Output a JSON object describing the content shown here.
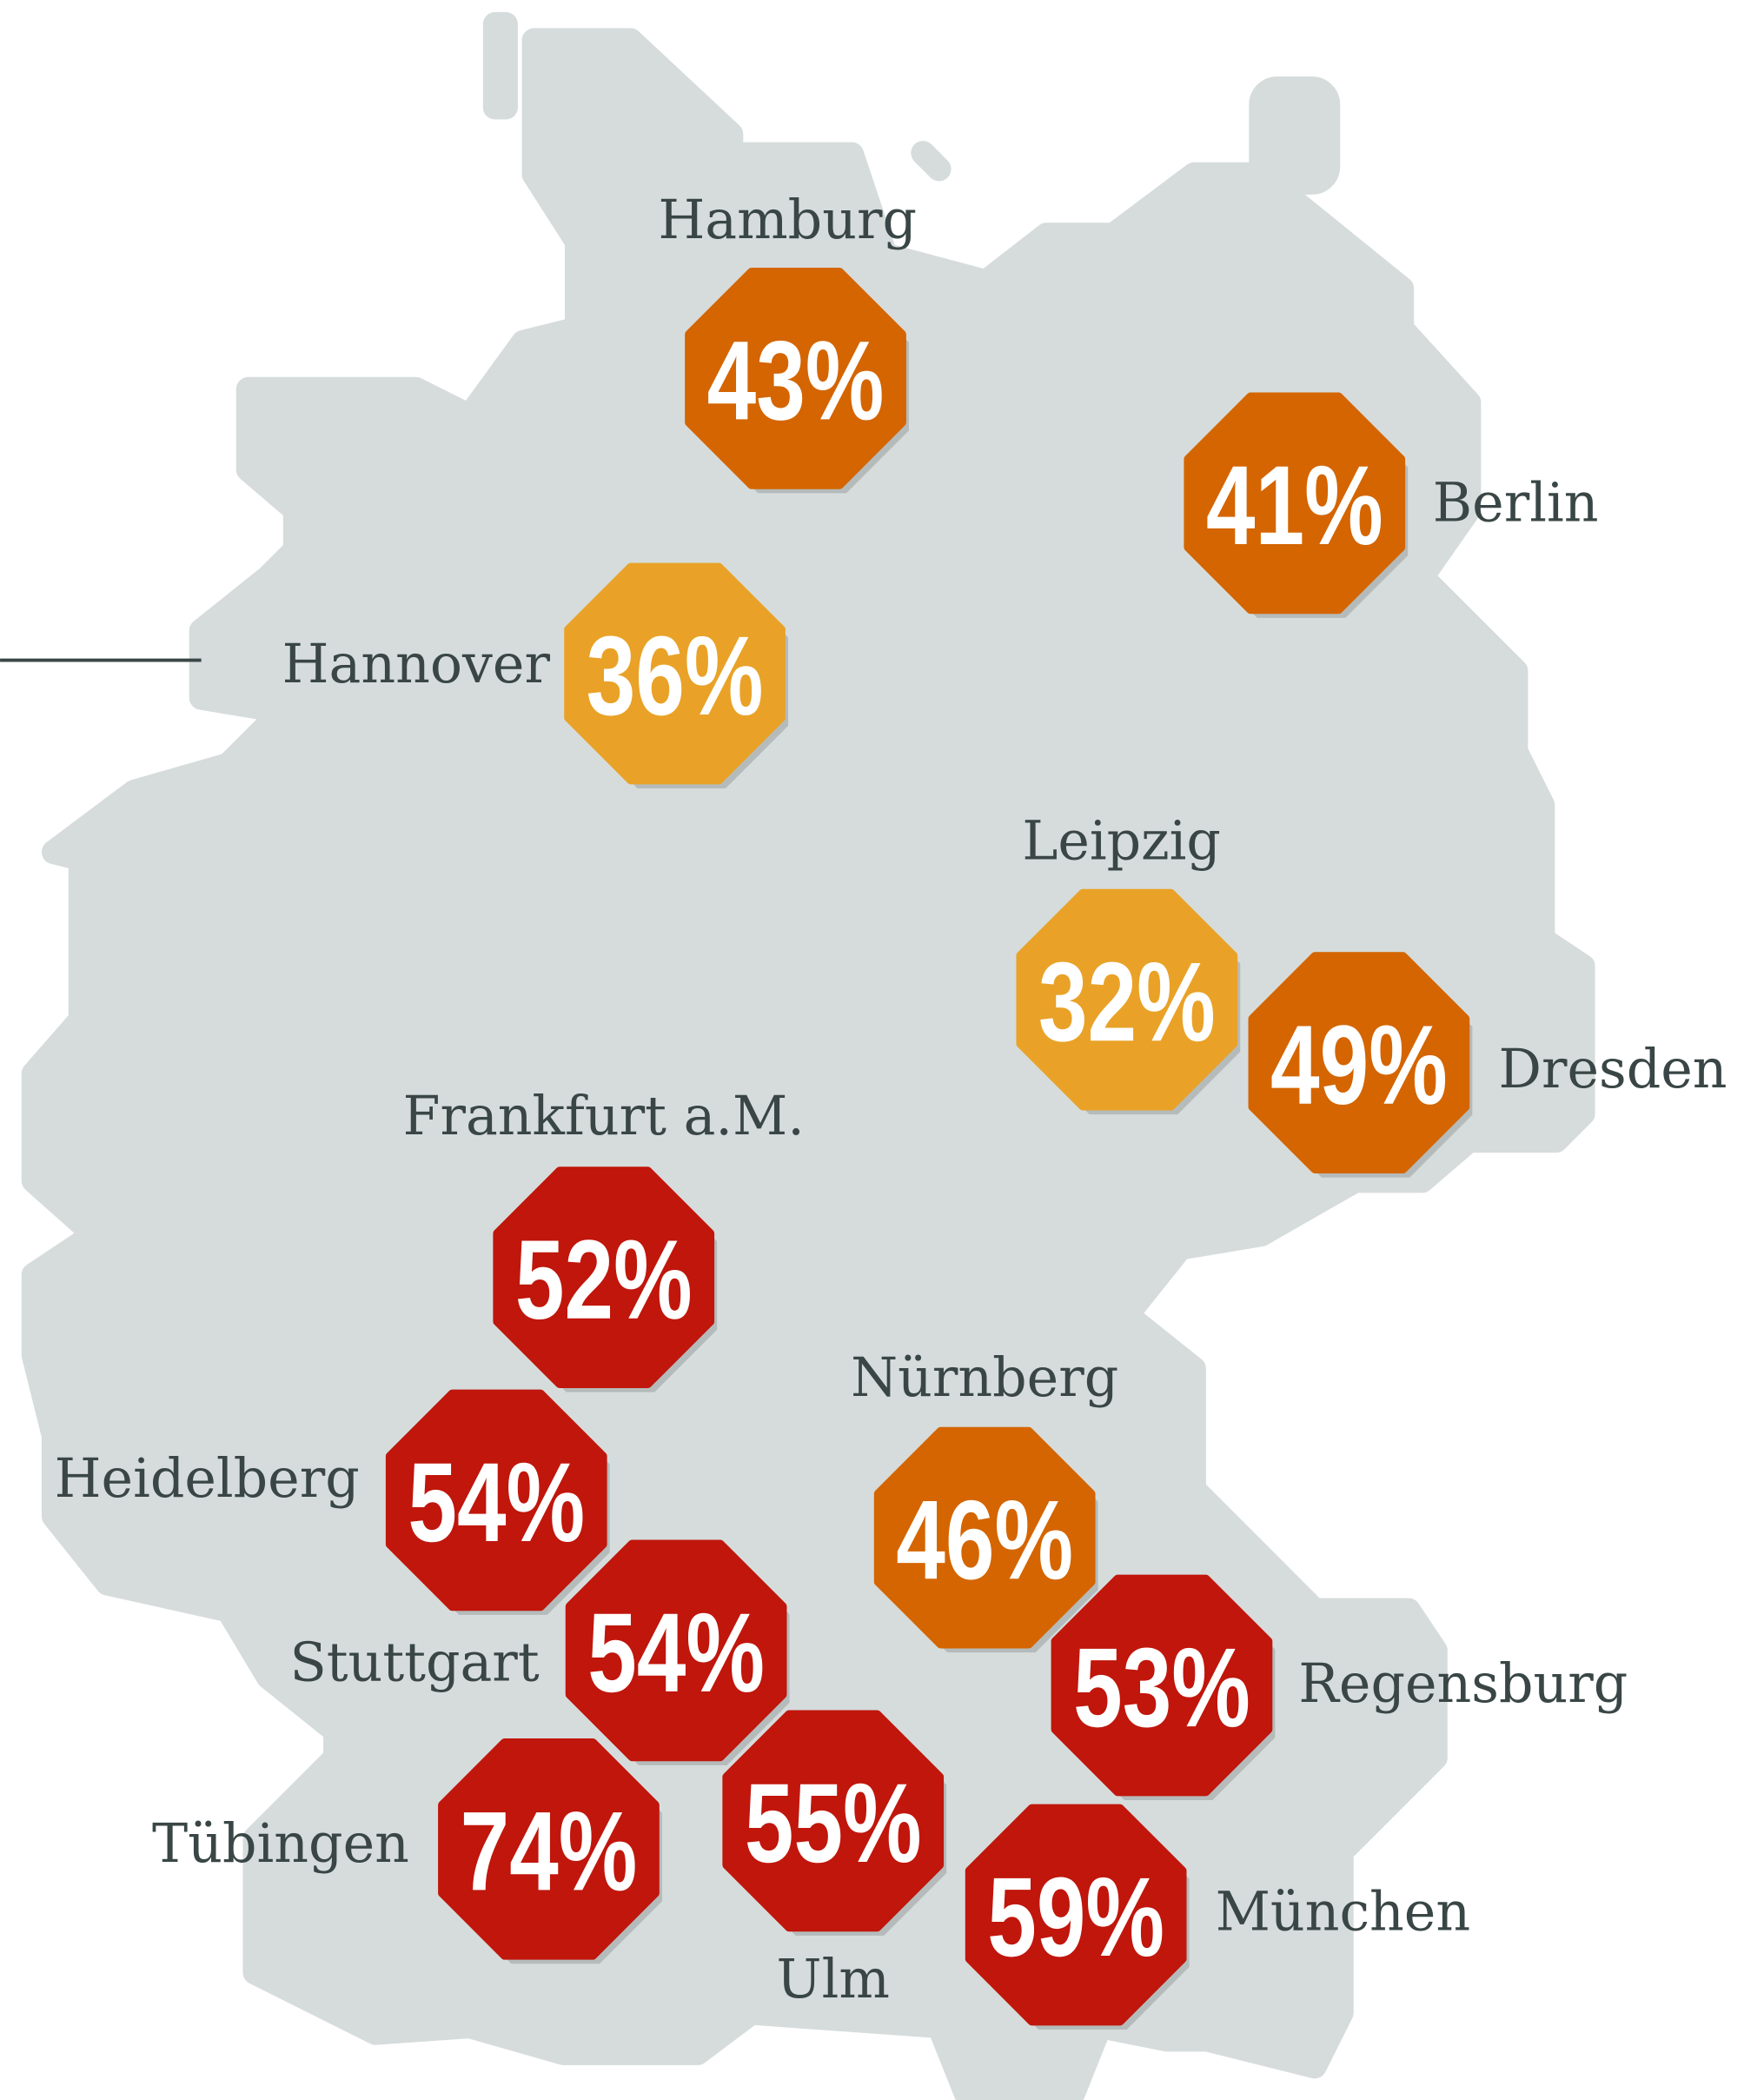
{
  "map": {
    "cities": [
      {
        "name": "Hamburg",
        "value": 43,
        "value_label": "43%",
        "color": "#d46500"
      },
      {
        "name": "Berlin",
        "value": 41,
        "value_label": "41%",
        "color": "#d46500"
      },
      {
        "name": "Hannover",
        "value": 36,
        "value_label": "36%",
        "color": "#e9a227"
      },
      {
        "name": "Leipzig",
        "value": 32,
        "value_label": "32%",
        "color": "#e9a227"
      },
      {
        "name": "Dresden",
        "value": 49,
        "value_label": "49%",
        "color": "#d46500"
      },
      {
        "name": "Frankfurt a.M.",
        "value": 52,
        "value_label": "52%",
        "color": "#c0160c"
      },
      {
        "name": "Heidelberg",
        "value": 54,
        "value_label": "54%",
        "color": "#c0160c"
      },
      {
        "name": "Stuttgart",
        "value": 54,
        "value_label": "54%",
        "color": "#c0160c"
      },
      {
        "name": "Nürnberg",
        "value": 46,
        "value_label": "46%",
        "color": "#d46500"
      },
      {
        "name": "Regensburg",
        "value": 53,
        "value_label": "53%",
        "color": "#c0160c"
      },
      {
        "name": "Tübingen",
        "value": 74,
        "value_label": "74%",
        "color": "#c0160c"
      },
      {
        "name": "Ulm",
        "value": 55,
        "value_label": "55%",
        "color": "#c0160c"
      },
      {
        "name": "München",
        "value": 59,
        "value_label": "59%",
        "color": "#c0160c"
      }
    ]
  }
}
